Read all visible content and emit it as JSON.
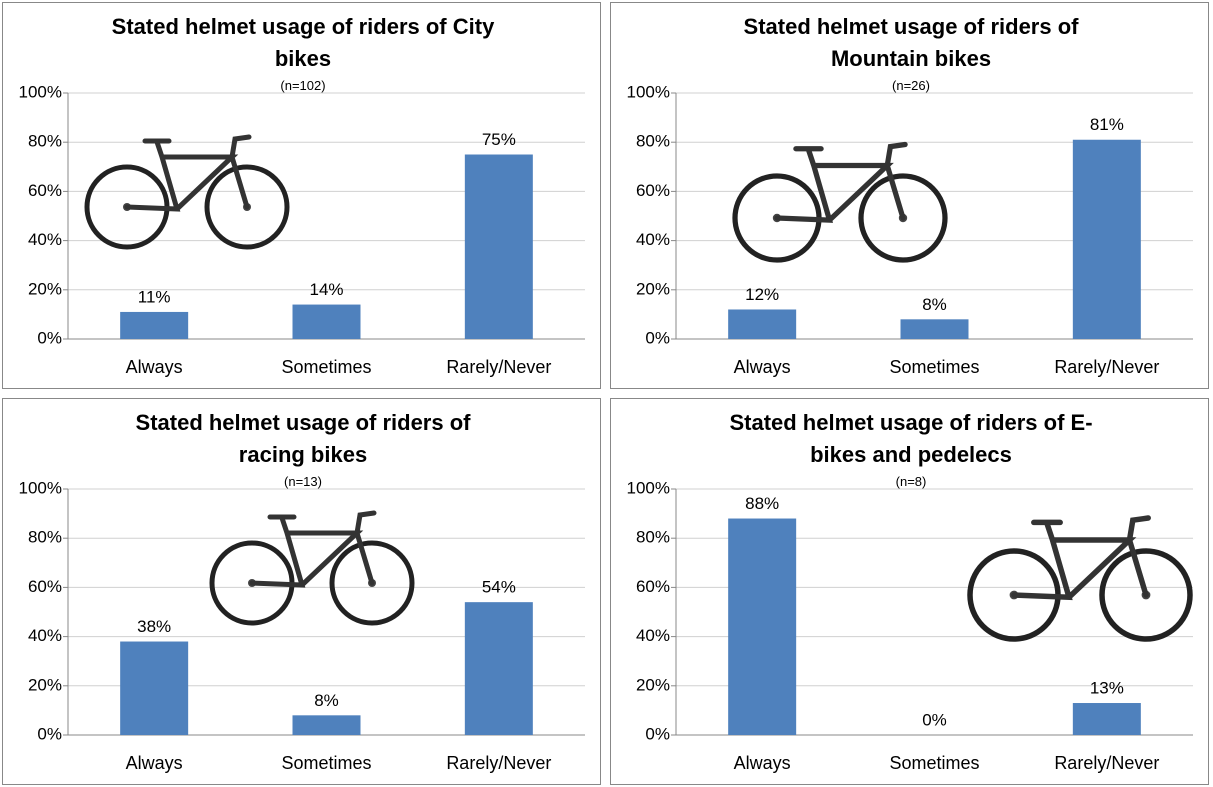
{
  "chart_data": [
    {
      "type": "bar",
      "title": "Stated helmet usage of riders of City bikes",
      "subtitle": "(n=102)",
      "categories": [
        "Always",
        "Sometimes",
        "Rarely/Never"
      ],
      "values": [
        11,
        14,
        75
      ],
      "value_labels": [
        "11%",
        "14%",
        "75%"
      ],
      "color": "#4f81bd",
      "ylim": [
        0,
        100
      ],
      "yticks": [
        {
          "value": 0,
          "label": "0%"
        },
        {
          "value": 20,
          "label": "20%"
        },
        {
          "value": 40,
          "label": "40%"
        },
        {
          "value": 60,
          "label": "60%"
        },
        {
          "value": 80,
          "label": "80%"
        },
        {
          "value": 100,
          "label": "100%"
        }
      ],
      "grid": true
    },
    {
      "type": "bar",
      "title": "Stated helmet usage of riders of Mountain bikes",
      "subtitle": "(n=26)",
      "categories": [
        "Always",
        "Sometimes",
        "Rarely/Never"
      ],
      "values": [
        12,
        8,
        81
      ],
      "value_labels": [
        "12%",
        "8%",
        "81%"
      ],
      "color": "#4f81bd",
      "ylim": [
        0,
        100
      ],
      "yticks": [
        {
          "value": 0,
          "label": "0%"
        },
        {
          "value": 20,
          "label": "20%"
        },
        {
          "value": 40,
          "label": "40%"
        },
        {
          "value": 60,
          "label": "60%"
        },
        {
          "value": 80,
          "label": "80%"
        },
        {
          "value": 100,
          "label": "100%"
        }
      ],
      "grid": true
    },
    {
      "type": "bar",
      "title": "Stated helmet usage of riders of racing bikes",
      "subtitle": "(n=13)",
      "categories": [
        "Always",
        "Sometimes",
        "Rarely/Never"
      ],
      "values": [
        38,
        8,
        54
      ],
      "value_labels": [
        "38%",
        "8%",
        "54%"
      ],
      "color": "#4f81bd",
      "ylim": [
        0,
        100
      ],
      "yticks": [
        {
          "value": 0,
          "label": "0%"
        },
        {
          "value": 20,
          "label": "20%"
        },
        {
          "value": 40,
          "label": "40%"
        },
        {
          "value": 60,
          "label": "60%"
        },
        {
          "value": 80,
          "label": "80%"
        },
        {
          "value": 100,
          "label": "100%"
        }
      ],
      "grid": true
    },
    {
      "type": "bar",
      "title": "Stated helmet usage of riders of E-bikes and pedelecs",
      "subtitle": "(n=8)",
      "categories": [
        "Always",
        "Sometimes",
        "Rarely/Never"
      ],
      "values": [
        88,
        0,
        13
      ],
      "value_labels": [
        "88%",
        "0%",
        "13%"
      ],
      "color": "#4f81bd",
      "ylim": [
        0,
        100
      ],
      "yticks": [
        {
          "value": 0,
          "label": "0%"
        },
        {
          "value": 20,
          "label": "20%"
        },
        {
          "value": 40,
          "label": "40%"
        },
        {
          "value": 60,
          "label": "60%"
        },
        {
          "value": 80,
          "label": "80%"
        },
        {
          "value": 100,
          "label": "100%"
        }
      ],
      "grid": true
    }
  ]
}
